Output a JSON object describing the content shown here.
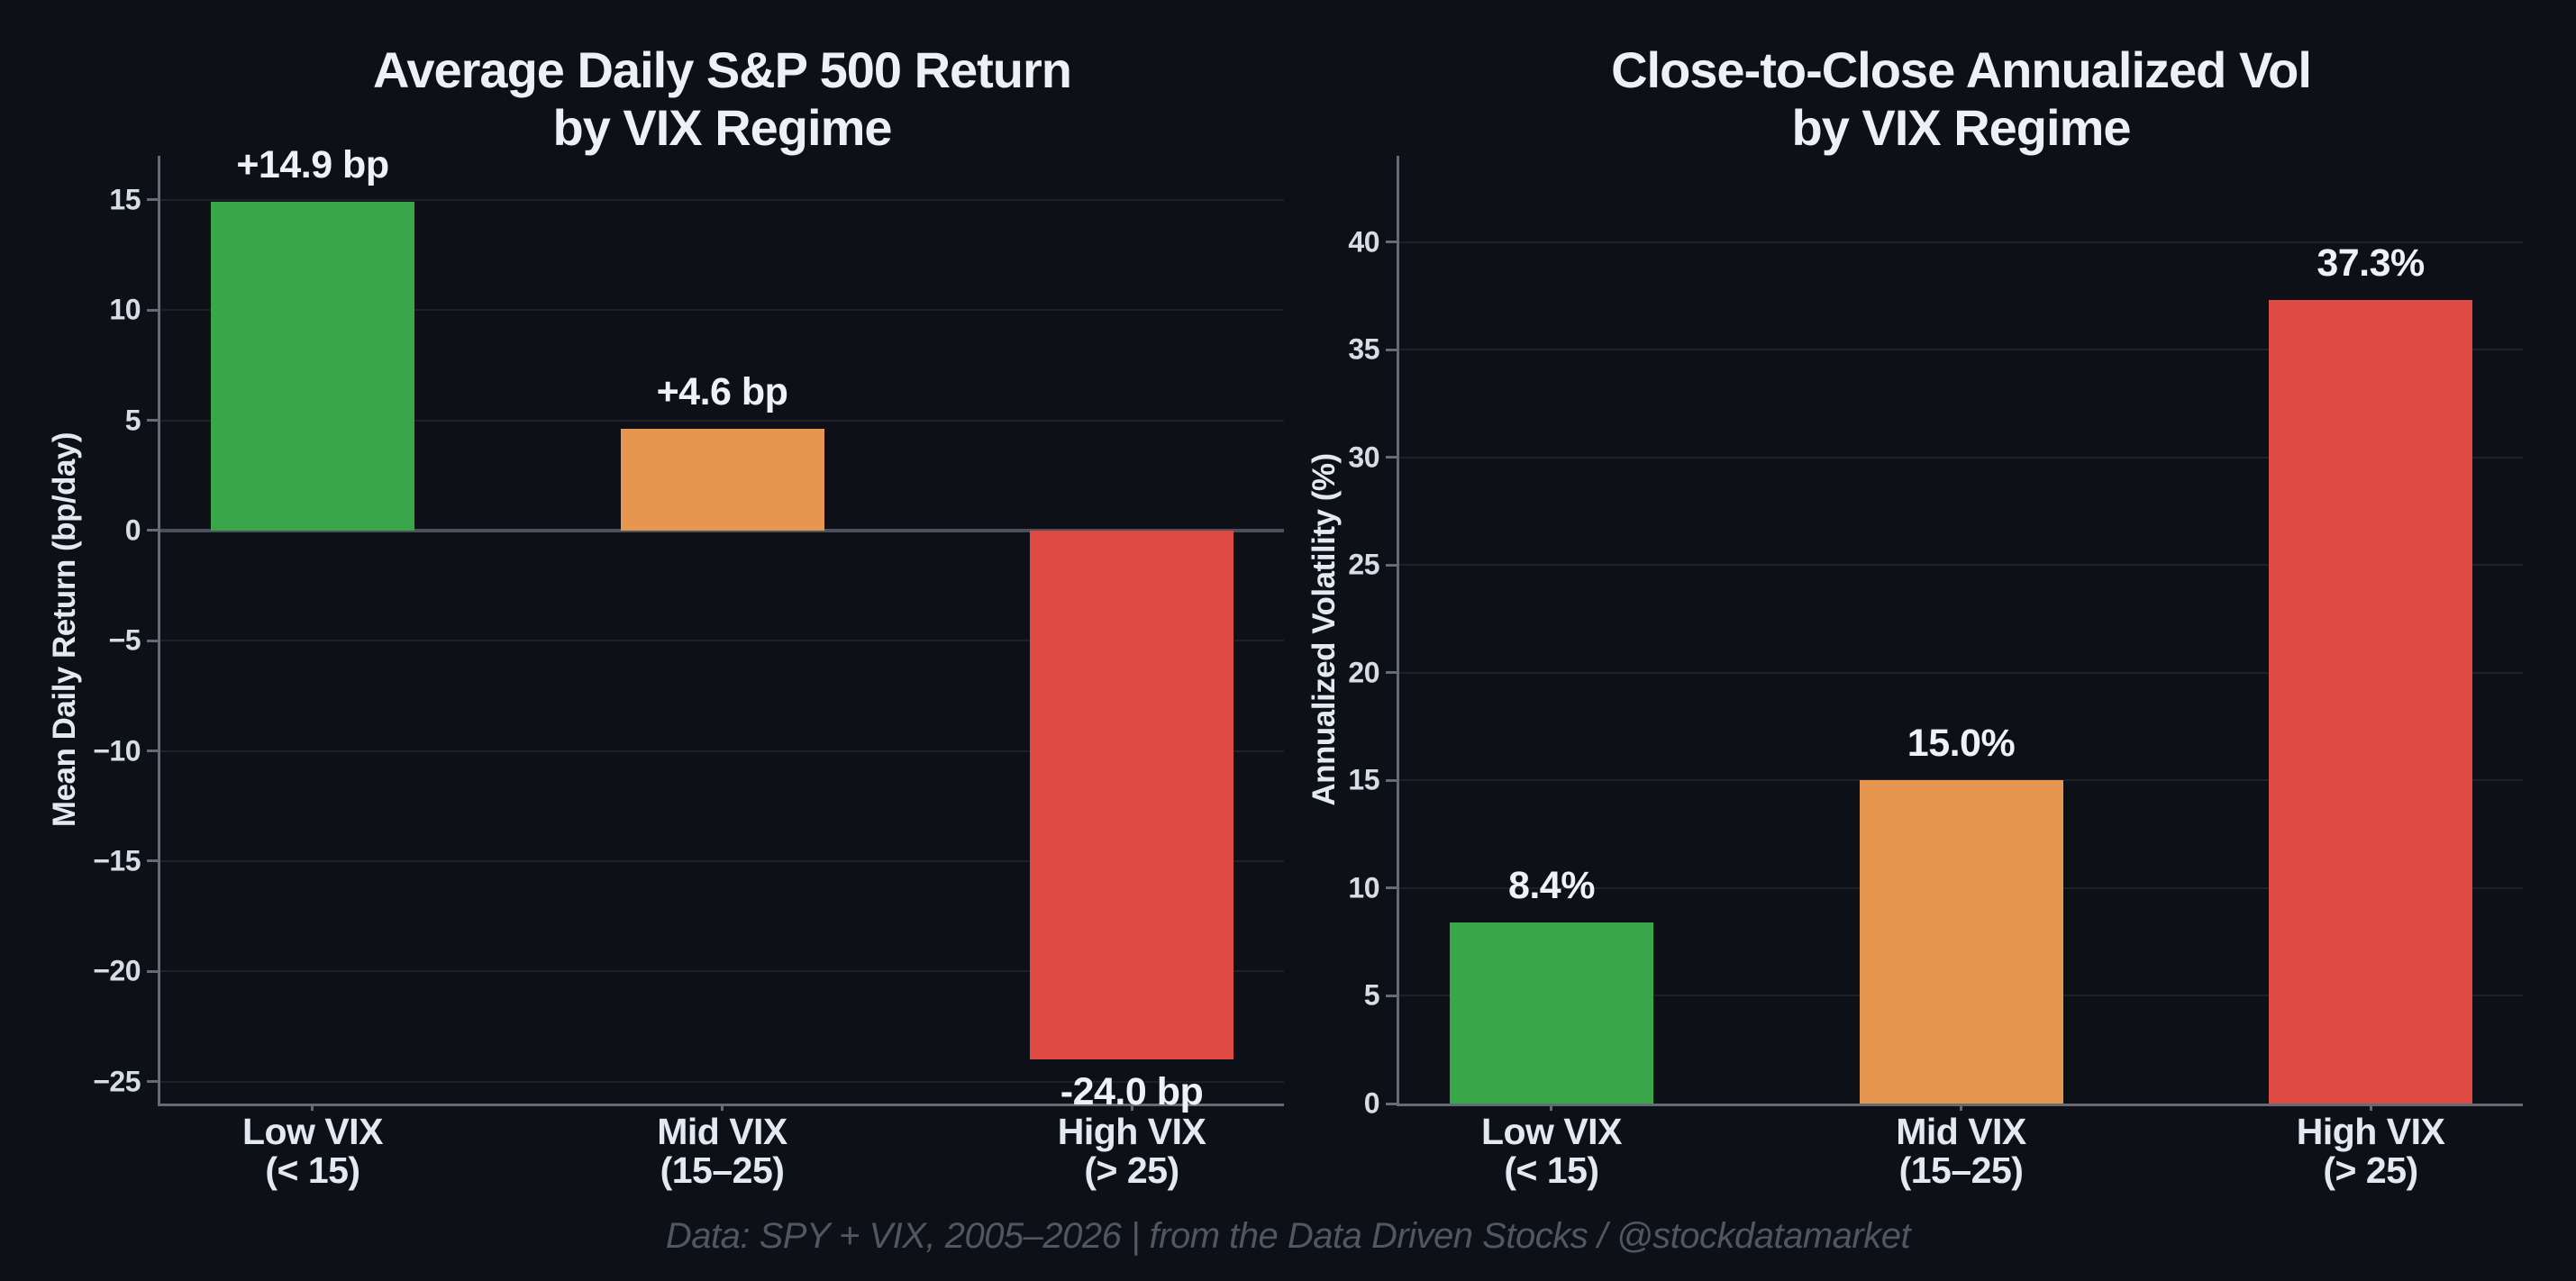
{
  "figure": {
    "background": "#0d1117",
    "footer_text": "Data: SPY + VIX, 2005–2026 | from the Data Driven Stocks / @stockdatamarket"
  },
  "chart_data": [
    {
      "type": "bar",
      "title": "Average Daily S&P 500 Return\nby VIX Regime",
      "ylabel": "Mean Daily Return (bp/day)",
      "categories": [
        "Low VIX\n(< 15)",
        "Mid VIX\n(15–25)",
        "High VIX\n(> 25)"
      ],
      "values": [
        14.9,
        4.6,
        -24.0
      ],
      "value_labels": [
        "+14.9 bp",
        "+4.6 bp",
        "-24.0 bp"
      ],
      "bar_colors": [
        "#3aa64a",
        "#e6964f",
        "#e04a44"
      ],
      "ylim": [
        -26,
        17
      ],
      "yticks": [
        15,
        10,
        5,
        0,
        -5,
        -10,
        -15,
        -20,
        -25
      ],
      "ytick_labels": [
        "15",
        "10",
        "5",
        "0",
        "−5",
        "−10",
        "−15",
        "−20",
        "−25"
      ],
      "grid": true,
      "zero_line": true,
      "legend": false
    },
    {
      "type": "bar",
      "title": "Close-to-Close Annualized Vol\nby VIX Regime",
      "ylabel": "Annualized Volatility (%)",
      "categories": [
        "Low VIX\n(< 15)",
        "Mid VIX\n(15–25)",
        "High VIX\n(> 25)"
      ],
      "values": [
        8.4,
        15.0,
        37.3
      ],
      "value_labels": [
        "8.4%",
        "15.0%",
        "37.3%"
      ],
      "bar_colors": [
        "#3aa64a",
        "#e6964f",
        "#e04a44"
      ],
      "ylim": [
        0,
        44
      ],
      "yticks": [
        0,
        5,
        10,
        15,
        20,
        25,
        30,
        35,
        40
      ],
      "ytick_labels": [
        "0",
        "5",
        "10",
        "15",
        "20",
        "25",
        "30",
        "35",
        "40"
      ],
      "grid": true,
      "zero_line": false,
      "legend": false
    }
  ]
}
